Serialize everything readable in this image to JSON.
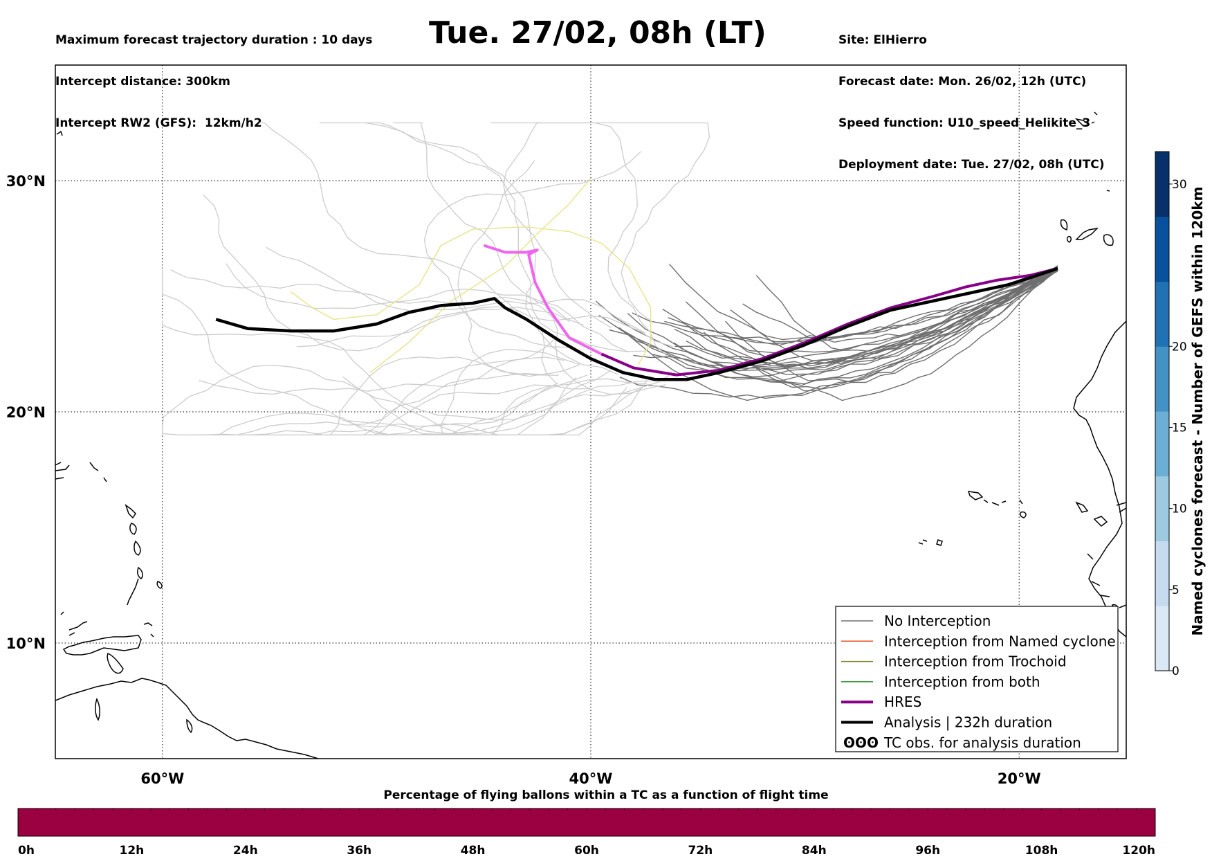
{
  "header": {
    "left_lines": [
      "Maximum forecast trajectory duration : 10 days",
      "Intercept distance: 300km",
      "Intercept RW2 (GFS):  12km/h2"
    ],
    "title": "Tue. 27/02, 08h (LT)",
    "right_lines": [
      "Site: ElHierro",
      "Forecast date: Mon. 26/02, 12h (UTC)",
      "Speed function: U10_speed_Helikite_3",
      "Deployment date: Tue. 27/02, 08h (UTC)"
    ]
  },
  "map": {
    "lat_range": [
      5,
      35
    ],
    "lon_range": [
      -65,
      -15
    ],
    "lat_ticks": [
      {
        "value": 30,
        "label": "30°N"
      },
      {
        "value": 20,
        "label": "20°N"
      },
      {
        "value": 10,
        "label": "10°N"
      }
    ],
    "lon_ticks": [
      {
        "value": -60,
        "label": "60°W"
      },
      {
        "value": -40,
        "label": "40°W"
      },
      {
        "value": -20,
        "label": "20°W"
      }
    ],
    "grid": true,
    "colors": {
      "no_interception": "#6e6e6e",
      "faded_member": "#cccccc",
      "trochoid_faded": "#e8e486",
      "named_cyclone": "#e8501e",
      "trochoid": "#808020",
      "both": "#228b22",
      "hres": "#880088",
      "hres_faded": "#ee66ee",
      "analysis": "#000000"
    }
  },
  "chart_data": {
    "type": "line",
    "title": "Tue. 27/02, 08h (LT)",
    "series": [
      {
        "name": "Analysis | 232h duration",
        "lon": [
          -18.2,
          -19.5,
          -20.5,
          -22.0,
          -24.0,
          -26.0,
          -28.0,
          -30.0,
          -32.0,
          -34.0,
          -35.5,
          -37.0,
          -38.5,
          -40.0,
          -41.5,
          -43.0,
          -44.0,
          -44.5,
          -45.5,
          -47.0,
          -48.5,
          -50.0,
          -52.0,
          -54.0,
          -56.0,
          -57.5
        ],
        "lat": [
          26.2,
          25.8,
          25.5,
          25.2,
          24.8,
          24.4,
          23.7,
          22.9,
          22.2,
          21.7,
          21.4,
          21.4,
          21.7,
          22.3,
          23.1,
          24.0,
          24.5,
          24.9,
          24.7,
          24.6,
          24.3,
          23.8,
          23.5,
          23.5,
          23.6,
          24.0
        ]
      },
      {
        "name": "HRES",
        "lon": [
          -18.2,
          -19.5,
          -21.0,
          -22.5,
          -24.0,
          -26.0,
          -28.0,
          -30.0,
          -32.0,
          -34.0,
          -36.0,
          -38.0,
          -39.5,
          -41.0,
          -42.0,
          -42.6,
          -42.9,
          -42.5,
          -43.0,
          -44.0,
          -45.0
        ],
        "lat": [
          26.2,
          25.9,
          25.7,
          25.4,
          25.0,
          24.5,
          23.8,
          23.0,
          22.3,
          21.8,
          21.6,
          21.9,
          22.5,
          23.2,
          24.5,
          25.6,
          26.8,
          27.0,
          26.9,
          26.9,
          27.2
        ]
      }
    ]
  },
  "legend": {
    "items": [
      {
        "label": "No Interception",
        "color": "#6e6e6e",
        "width": 1.5
      },
      {
        "label": "Interception from Named cyclone",
        "color": "#e8501e",
        "width": 1.5
      },
      {
        "label": "Interception from Trochoid",
        "color": "#808020",
        "width": 1.5
      },
      {
        "label": "Interception from both",
        "color": "#228b22",
        "width": 1.5
      },
      {
        "label": "HRES",
        "color": "#880088",
        "width": 4
      },
      {
        "label": "Analysis | 232h duration",
        "color": "#000000",
        "width": 4
      },
      {
        "label": "TC obs. for analysis duration",
        "color": "#000000",
        "width": 0,
        "symbol": "ʘʘʘ"
      }
    ]
  },
  "colorbar": {
    "label": "Named cyclones forecast - Number of GEFS within 120km",
    "min": 0,
    "max": 32,
    "ticks": [
      0,
      5,
      10,
      15,
      20,
      30
    ],
    "colors": [
      "#dbe9f6",
      "#c6dbef",
      "#9ecae1",
      "#6baed6",
      "#4292c6",
      "#2171b5",
      "#08519c",
      "#08306b"
    ]
  },
  "time_bar": {
    "title": "Percentage of flying ballons within a TC as a function of flight time",
    "fill_color": "#9b0041",
    "ticks": [
      "0h",
      "12h",
      "24h",
      "36h",
      "48h",
      "60h",
      "72h",
      "84h",
      "96h",
      "108h",
      "120h"
    ]
  }
}
